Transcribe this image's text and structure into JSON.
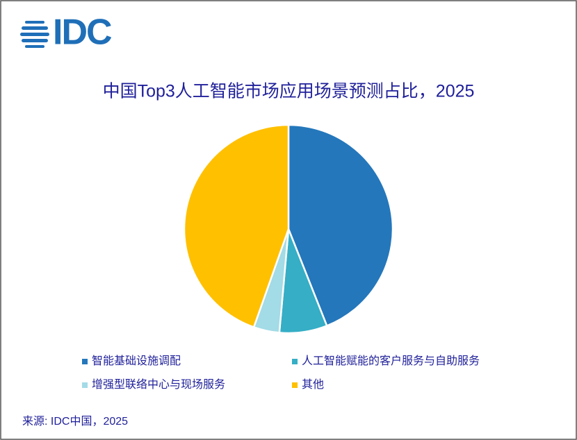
{
  "logo": "IDC",
  "chart_data": {
    "type": "pie",
    "title": "中国Top3人工智能市场应用场景预测占比，2025",
    "categories": [
      "智能基础设施调配",
      "人工智能赋能的客户服务与自助服务",
      "增强型联络中心与现场服务",
      "其他"
    ],
    "values": [
      44,
      7.4,
      4,
      44.6
    ],
    "colors": [
      "#2477bb",
      "#35aec6",
      "#a3dbe6",
      "#ffc000"
    ],
    "legend": "bottom"
  },
  "source": "来源: IDC中国，2025"
}
